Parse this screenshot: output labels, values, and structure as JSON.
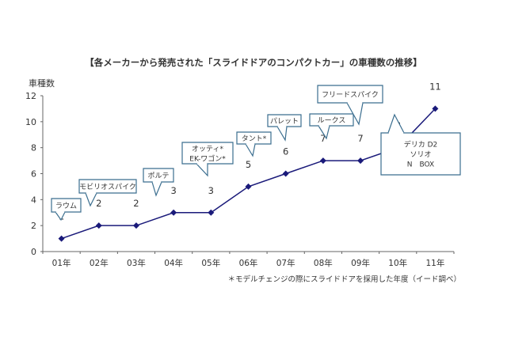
{
  "chart_data": {
    "type": "line",
    "title": "【各メーカーから発売された「スライドドアのコンパクトカー」の車種数の推移】",
    "ylabel": "車種数",
    "xlabel": "",
    "categories": [
      "01年",
      "02年",
      "03年",
      "04年",
      "05年",
      "06年",
      "07年",
      "08年",
      "09年",
      "10年",
      "11年"
    ],
    "series": [
      {
        "name": "車種数",
        "values": [
          1,
          2,
          2,
          3,
          3,
          5,
          6,
          7,
          7,
          8,
          11
        ]
      }
    ],
    "ylim": [
      0,
      12
    ],
    "yticks": [
      0,
      2,
      4,
      6,
      8,
      10,
      12
    ],
    "grid": false,
    "line_color": "#1a1a7a",
    "annotations": [
      {
        "category": "01年",
        "lines": [
          "ラウム"
        ]
      },
      {
        "category": "02年",
        "lines": [
          "モビリオスパイク"
        ]
      },
      {
        "category": "04年",
        "lines": [
          "ポルテ"
        ]
      },
      {
        "category": "06年",
        "lines": [
          "オッティ*",
          "EK-ワゴン*"
        ]
      },
      {
        "category": "07年",
        "lines": [
          "タント*"
        ]
      },
      {
        "category": "08年",
        "lines": [
          "パレット"
        ]
      },
      {
        "category": "09年",
        "lines": [
          "ルークス"
        ]
      },
      {
        "category": "10年",
        "lines": [
          "フリードスパイク"
        ]
      },
      {
        "category": "11年",
        "lines": [
          "デリカ D2",
          "ソリオ",
          "N　BOX"
        ]
      }
    ],
    "footnote": "＊モデルチェンジの際にスライドドアを採用した年度（イード調べ）"
  }
}
